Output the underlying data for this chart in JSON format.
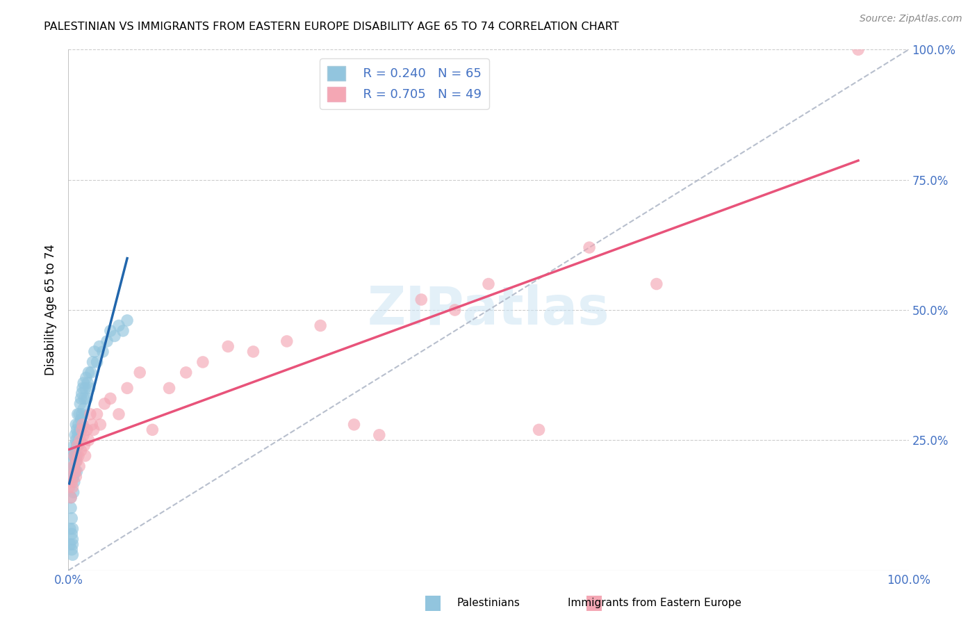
{
  "title": "PALESTINIAN VS IMMIGRANTS FROM EASTERN EUROPE DISABILITY AGE 65 TO 74 CORRELATION CHART",
  "source": "Source: ZipAtlas.com",
  "ylabel": "Disability Age 65 to 74",
  "xlim": [
    0,
    1.0
  ],
  "ylim": [
    0,
    1.0
  ],
  "watermark": "ZIPatlas",
  "legend_r1": "R = 0.240",
  "legend_n1": "N = 65",
  "legend_r2": "R = 0.705",
  "legend_n2": "N = 49",
  "color_blue": "#92c5de",
  "color_pink": "#f4a7b4",
  "color_blue_line": "#2166ac",
  "color_pink_line": "#e8537a",
  "color_gray_dashed": "#b0b8c8",
  "color_axis_text": "#4472c4",
  "xticks": [
    0.0,
    1.0
  ],
  "xtick_labels": [
    "0.0%",
    "100.0%"
  ],
  "ytick_labels_right": [
    "25.0%",
    "50.0%",
    "75.0%",
    "100.0%"
  ],
  "yticks_right": [
    0.25,
    0.5,
    0.75,
    1.0
  ],
  "palestinians_x": [
    0.001,
    0.001,
    0.002,
    0.002,
    0.003,
    0.003,
    0.004,
    0.004,
    0.004,
    0.005,
    0.005,
    0.005,
    0.005,
    0.006,
    0.006,
    0.006,
    0.006,
    0.007,
    0.007,
    0.007,
    0.007,
    0.008,
    0.008,
    0.008,
    0.009,
    0.009,
    0.009,
    0.01,
    0.01,
    0.01,
    0.01,
    0.011,
    0.011,
    0.012,
    0.012,
    0.013,
    0.013,
    0.014,
    0.014,
    0.015,
    0.015,
    0.016,
    0.016,
    0.017,
    0.018,
    0.018,
    0.019,
    0.02,
    0.021,
    0.022,
    0.023,
    0.024,
    0.025,
    0.027,
    0.029,
    0.031,
    0.034,
    0.037,
    0.041,
    0.046,
    0.05,
    0.055,
    0.06,
    0.065,
    0.07
  ],
  "palestinians_y": [
    0.18,
    0.22,
    0.05,
    0.08,
    0.14,
    0.12,
    0.1,
    0.07,
    0.04,
    0.08,
    0.06,
    0.05,
    0.03,
    0.22,
    0.2,
    0.18,
    0.15,
    0.24,
    0.22,
    0.2,
    0.17,
    0.26,
    0.23,
    0.19,
    0.28,
    0.25,
    0.21,
    0.27,
    0.24,
    0.22,
    0.19,
    0.3,
    0.26,
    0.28,
    0.24,
    0.3,
    0.26,
    0.32,
    0.27,
    0.33,
    0.29,
    0.34,
    0.3,
    0.35,
    0.36,
    0.31,
    0.33,
    0.35,
    0.37,
    0.33,
    0.36,
    0.38,
    0.35,
    0.38,
    0.4,
    0.42,
    0.4,
    0.43,
    0.42,
    0.44,
    0.46,
    0.45,
    0.47,
    0.46,
    0.48
  ],
  "eastern_europe_x": [
    0.001,
    0.002,
    0.003,
    0.004,
    0.005,
    0.006,
    0.007,
    0.008,
    0.009,
    0.01,
    0.011,
    0.012,
    0.013,
    0.014,
    0.015,
    0.016,
    0.017,
    0.018,
    0.019,
    0.02,
    0.022,
    0.024,
    0.026,
    0.028,
    0.03,
    0.034,
    0.038,
    0.043,
    0.05,
    0.06,
    0.07,
    0.085,
    0.1,
    0.12,
    0.14,
    0.16,
    0.19,
    0.22,
    0.26,
    0.3,
    0.34,
    0.37,
    0.42,
    0.46,
    0.5,
    0.56,
    0.62,
    0.7,
    0.94
  ],
  "eastern_europe_y": [
    0.16,
    0.18,
    0.14,
    0.17,
    0.16,
    0.2,
    0.22,
    0.19,
    0.18,
    0.21,
    0.24,
    0.22,
    0.2,
    0.25,
    0.23,
    0.27,
    0.28,
    0.26,
    0.24,
    0.22,
    0.27,
    0.25,
    0.3,
    0.28,
    0.27,
    0.3,
    0.28,
    0.32,
    0.33,
    0.3,
    0.35,
    0.38,
    0.27,
    0.35,
    0.38,
    0.4,
    0.43,
    0.42,
    0.44,
    0.47,
    0.28,
    0.26,
    0.52,
    0.5,
    0.55,
    0.27,
    0.62,
    0.55,
    1.0
  ]
}
